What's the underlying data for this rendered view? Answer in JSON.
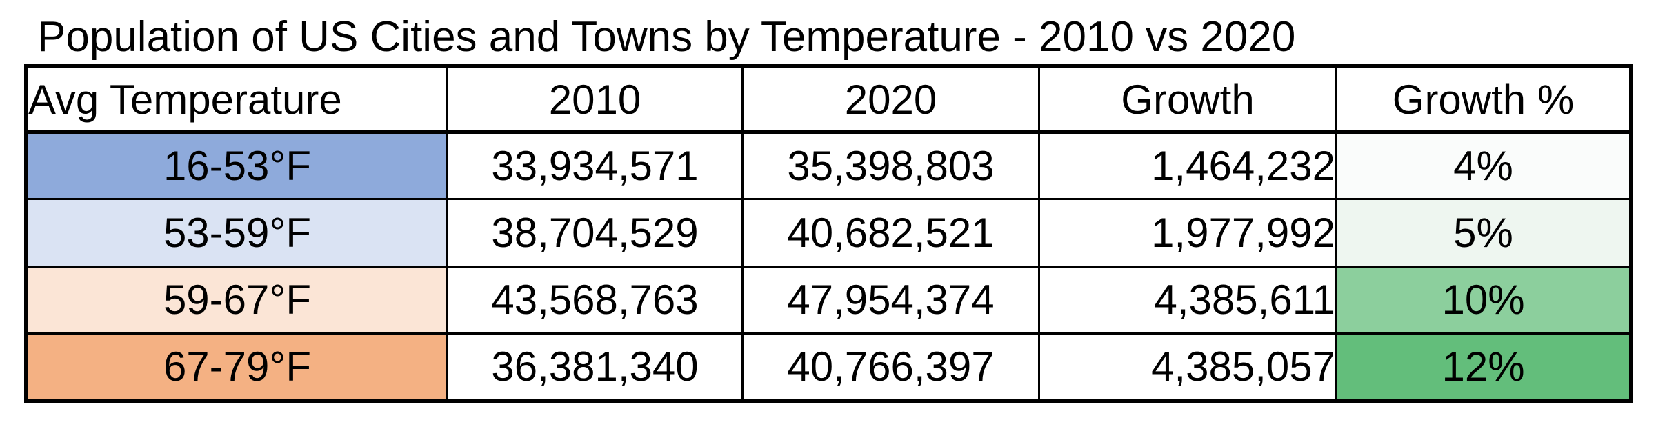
{
  "chart_data": {
    "type": "table",
    "title": "Population of US Cities and Towns by Temperature - 2010 vs 2020",
    "columns": [
      "Avg Temperature",
      "2010",
      "2020",
      "Growth",
      "Growth %"
    ],
    "rows": [
      {
        "band": "16-53°F",
        "pop_2010": "33,934,571",
        "pop_2020": "35,398,803",
        "growth": "1,464,232",
        "growth_pct": "4%",
        "growth_pct_value": 4,
        "band_color": "#8eaadb",
        "pct_color": "#fafcfb"
      },
      {
        "band": "53-59°F",
        "pop_2010": "38,704,529",
        "pop_2020": "40,682,521",
        "growth": "1,977,992",
        "growth_pct": "5%",
        "growth_pct_value": 5,
        "band_color": "#dae3f3",
        "pct_color": "#eef6f0"
      },
      {
        "band": "59-67°F",
        "pop_2010": "43,568,763",
        "pop_2020": "47,954,374",
        "growth": "4,385,611",
        "growth_pct": "10%",
        "growth_pct_value": 10,
        "band_color": "#fbe5d6",
        "pct_color": "#8ccf9d"
      },
      {
        "band": "67-79°F",
        "pop_2010": "36,381,340",
        "pop_2020": "40,766,397",
        "growth": "4,385,057",
        "growth_pct": "12%",
        "growth_pct_value": 12,
        "band_color": "#f4b183",
        "pct_color": "#63be7b"
      }
    ]
  }
}
